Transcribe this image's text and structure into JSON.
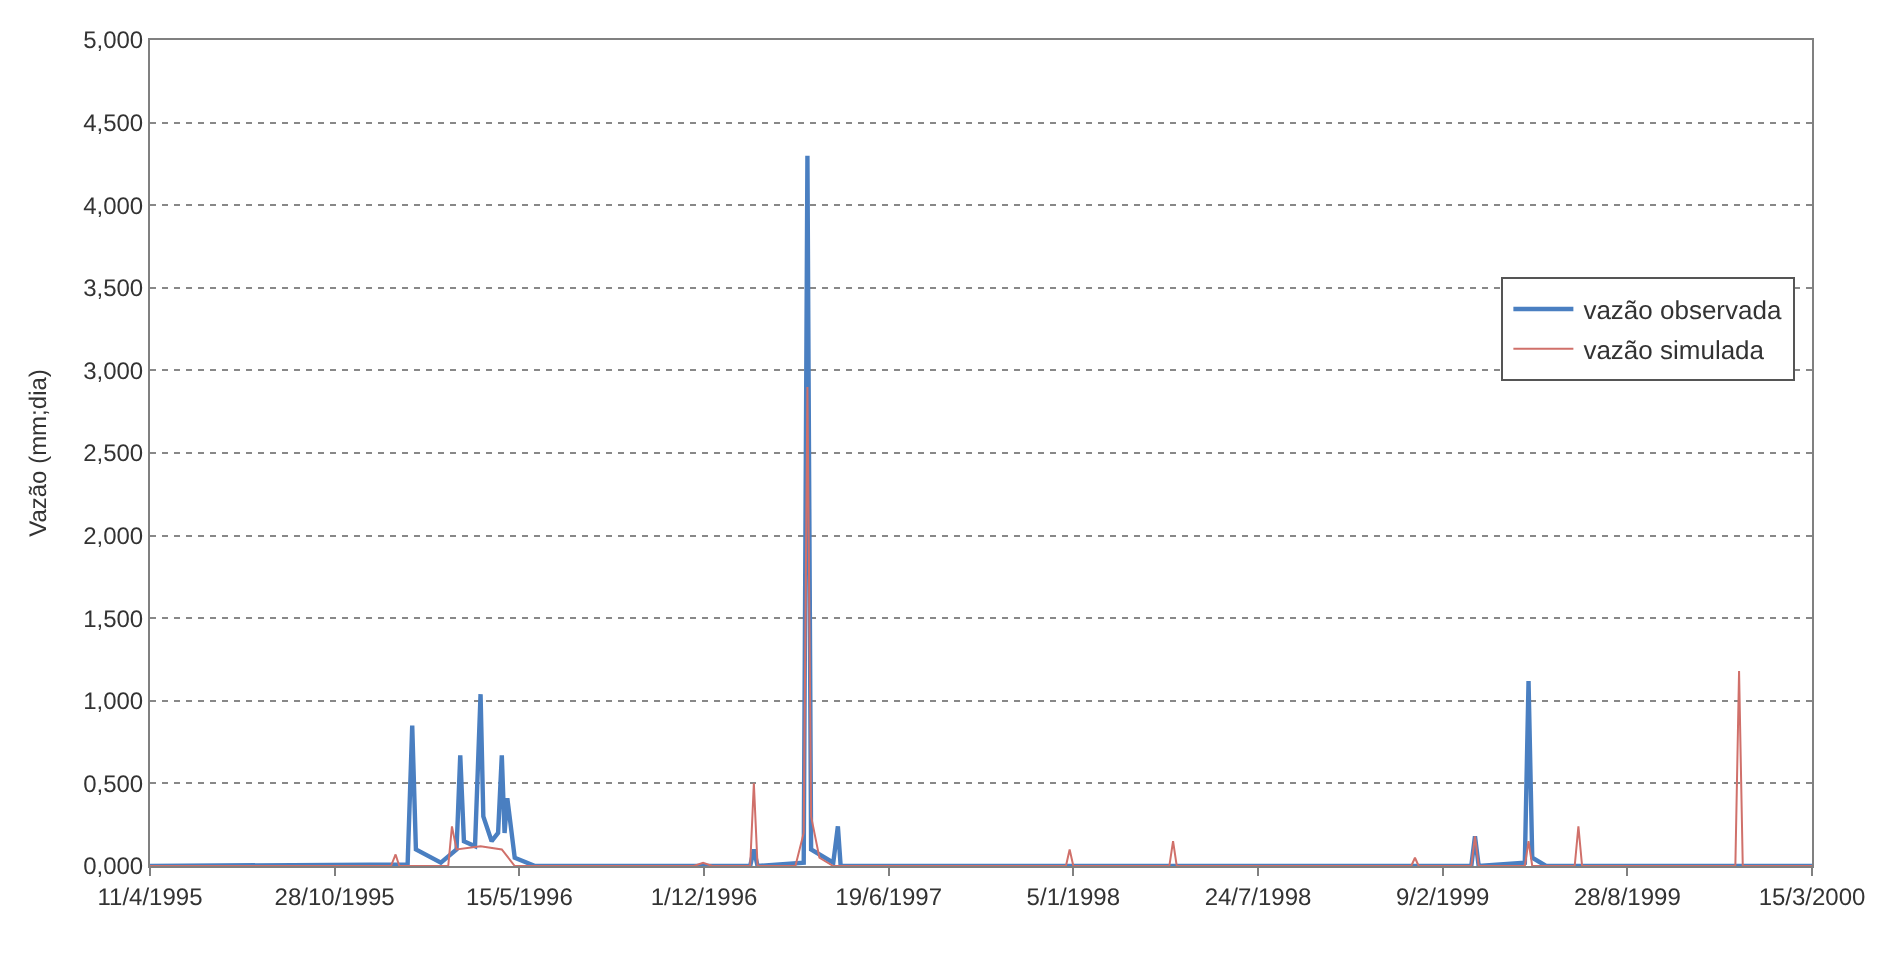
{
  "chart_data": {
    "type": "line",
    "ylabel": "Vazão (mm;dia)",
    "xlim": [
      "1995-04-11",
      "2000-03-15"
    ],
    "xticks": [
      {
        "value": "1995-04-11",
        "label": "11/4/1995"
      },
      {
        "value": "1995-10-28",
        "label": "28/10/1995"
      },
      {
        "value": "1996-05-15",
        "label": "15/5/1996"
      },
      {
        "value": "1996-12-01",
        "label": "1/12/1996"
      },
      {
        "value": "1997-06-19",
        "label": "19/6/1997"
      },
      {
        "value": "1998-01-05",
        "label": "5/1/1998"
      },
      {
        "value": "1998-07-24",
        "label": "24/7/1998"
      },
      {
        "value": "1999-02-09",
        "label": "9/2/1999"
      },
      {
        "value": "1999-08-28",
        "label": "28/8/1999"
      },
      {
        "value": "2000-03-15",
        "label": "15/3/2000"
      }
    ],
    "ylim": [
      0,
      5
    ],
    "yticks": [
      {
        "value": 0,
        "label": "0,000"
      },
      {
        "value": 0.5,
        "label": "0,500"
      },
      {
        "value": 1,
        "label": "1,000"
      },
      {
        "value": 1.5,
        "label": "1,500"
      },
      {
        "value": 2,
        "label": "2,000"
      },
      {
        "value": 2.5,
        "label": "2,500"
      },
      {
        "value": 3,
        "label": "3,000"
      },
      {
        "value": 3.5,
        "label": "3,500"
      },
      {
        "value": 4,
        "label": "4,000"
      },
      {
        "value": 4.5,
        "label": "4,500"
      },
      {
        "value": 5,
        "label": "5,000"
      }
    ],
    "grid": "y",
    "legend": "right",
    "marker": "none",
    "line_style": "solid",
    "series": [
      {
        "name": "vazão observada",
        "color": "#4a7fc1",
        "x": [
          "1995-04-11",
          "1996-01-15",
          "1996-01-20",
          "1996-01-24",
          "1996-02-20",
          "1996-03-08",
          "1996-03-12",
          "1996-03-16",
          "1996-03-28",
          "1996-04-03",
          "1996-04-06",
          "1996-04-15",
          "1996-04-22",
          "1996-04-26",
          "1996-04-29",
          "1996-05-02",
          "1996-05-10",
          "1996-06-01",
          "1997-01-20",
          "1997-01-24",
          "1997-01-28",
          "1997-03-19",
          "1997-03-23",
          "1997-03-27",
          "1997-04-20",
          "1997-04-25",
          "1997-04-28",
          "1999-03-12",
          "1999-03-16",
          "1999-03-20",
          "1999-05-09",
          "1999-05-13",
          "1999-05-17",
          "1999-06-01",
          "2000-03-15"
        ],
        "values": [
          0,
          0.01,
          0.85,
          0.1,
          0.02,
          0.1,
          0.67,
          0.15,
          0.12,
          1.04,
          0.3,
          0.15,
          0.2,
          0.67,
          0.2,
          0.41,
          0.05,
          0,
          0,
          0.1,
          0,
          0.02,
          4.3,
          0.1,
          0.02,
          0.24,
          0,
          0,
          0.18,
          0,
          0.02,
          1.12,
          0.05,
          0,
          0
        ]
      },
      {
        "name": "vazão simulada",
        "color": "#d0706a",
        "x": [
          "1995-04-11",
          "1995-12-28",
          "1996-01-02",
          "1996-01-06",
          "1996-02-28",
          "1996-03-03",
          "1996-03-08",
          "1996-04-03",
          "1996-04-26",
          "1996-05-10",
          "1996-11-20",
          "1996-11-30",
          "1996-12-10",
          "1997-01-20",
          "1997-01-24",
          "1997-01-28",
          "1997-03-10",
          "1997-03-19",
          "1997-03-23",
          "1997-03-27",
          "1997-04-05",
          "1997-04-20",
          "1997-12-28",
          "1998-01-01",
          "1998-01-05",
          "1998-04-19",
          "1998-04-23",
          "1998-04-27",
          "1999-01-06",
          "1999-01-10",
          "1999-01-14",
          "1999-03-12",
          "1999-03-16",
          "1999-03-20",
          "1999-05-09",
          "1999-05-13",
          "1999-05-17",
          "1999-07-02",
          "1999-07-06",
          "1999-07-10",
          "1999-12-23",
          "1999-12-27",
          "1999-12-31",
          "2000-03-15"
        ],
        "values": [
          0,
          0,
          0.07,
          0,
          0,
          0.24,
          0.1,
          0.12,
          0.1,
          0,
          0,
          0.02,
          0,
          0,
          0.5,
          0,
          0,
          0.2,
          2.9,
          0.3,
          0.05,
          0,
          0,
          0.1,
          0,
          0,
          0.15,
          0,
          0,
          0.05,
          0,
          0,
          0.18,
          0,
          0,
          0.15,
          0,
          0,
          0.24,
          0,
          0,
          1.18,
          0,
          0
        ]
      }
    ]
  }
}
